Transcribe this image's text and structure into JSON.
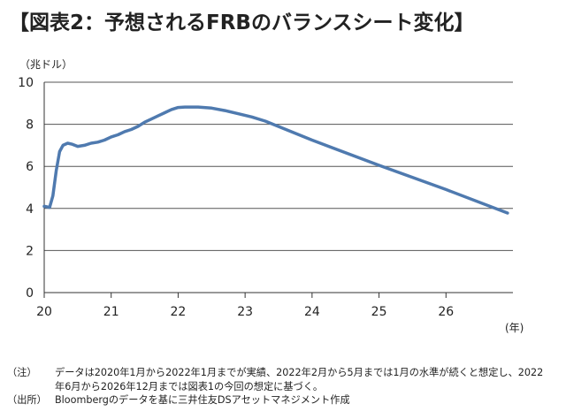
{
  "title": "【図表2：予想されるFRBのバランスシート変化】",
  "chart_data": {
    "type": "line",
    "title": "【図表2：予想されるFRBのバランスシート変化】",
    "y_unit_label": "（兆ドル）",
    "x_unit_label": "(年)",
    "ylim": [
      0,
      10
    ],
    "yticks": [
      0,
      2,
      4,
      6,
      8,
      10
    ],
    "xlim": [
      2020,
      2027
    ],
    "xticks": [
      {
        "value": 2020,
        "label": "20"
      },
      {
        "value": 2021,
        "label": "21"
      },
      {
        "value": 2022,
        "label": "22"
      },
      {
        "value": 2023,
        "label": "23"
      },
      {
        "value": 2024,
        "label": "24"
      },
      {
        "value": 2025,
        "label": "25"
      },
      {
        "value": 2026,
        "label": "26"
      }
    ],
    "grid": "horizontal",
    "series": [
      {
        "color": "#4f7aaf",
        "x": [
          2020.0,
          2020.08,
          2020.13,
          2020.18,
          2020.23,
          2020.28,
          2020.35,
          2020.42,
          2020.5,
          2020.6,
          2020.7,
          2020.8,
          2020.9,
          2021.0,
          2021.1,
          2021.2,
          2021.3,
          2021.4,
          2021.5,
          2021.6,
          2021.7,
          2021.8,
          2021.9,
          2022.0,
          2022.1,
          2022.3,
          2022.5,
          2022.7,
          2022.9,
          2023.1,
          2023.3,
          2024.0,
          2025.0,
          2026.0,
          2026.92
        ],
        "y": [
          4.1,
          4.05,
          4.6,
          5.8,
          6.7,
          7.0,
          7.1,
          7.05,
          6.95,
          7.0,
          7.1,
          7.15,
          7.25,
          7.4,
          7.5,
          7.65,
          7.75,
          7.9,
          8.1,
          8.25,
          8.4,
          8.55,
          8.7,
          8.8,
          8.82,
          8.82,
          8.77,
          8.65,
          8.5,
          8.35,
          8.15,
          7.25,
          6.05,
          4.9,
          3.78
        ]
      }
    ]
  },
  "notes": [
    {
      "label": "（注）",
      "text": "データは2020年1月から2022年1月までが実績、2022年2月から5月までは1月の水準が続くと想定し、2022年6月から2026年12月までは図表1の今回の想定に基づく。"
    },
    {
      "label": "（出所）",
      "text": "Bloombergのデータを基に三井住友DSアセットマネジメント作成"
    }
  ]
}
